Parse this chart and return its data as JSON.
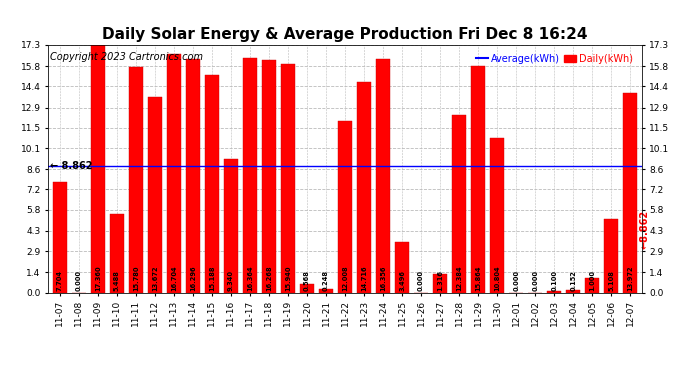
{
  "title": "Daily Solar Energy & Average Production Fri Dec 8 16:24",
  "copyright": "Copyright 2023 Cartronics.com",
  "legend_avg": "Average(kWh)",
  "legend_daily": "Daily(kWh)",
  "average": 8.862,
  "categories": [
    "11-07",
    "11-08",
    "11-09",
    "11-10",
    "11-11",
    "11-12",
    "11-13",
    "11-14",
    "11-15",
    "11-16",
    "11-17",
    "11-18",
    "11-19",
    "11-20",
    "11-21",
    "11-22",
    "11-23",
    "11-24",
    "11-25",
    "11-26",
    "11-27",
    "11-28",
    "11-29",
    "11-30",
    "12-01",
    "12-02",
    "12-03",
    "12-04",
    "12-05",
    "12-06",
    "12-07"
  ],
  "values": [
    7.704,
    0.0,
    17.36,
    5.488,
    15.78,
    13.672,
    16.704,
    16.296,
    15.188,
    9.34,
    16.364,
    16.268,
    15.94,
    0.568,
    0.248,
    12.008,
    14.716,
    16.356,
    3.496,
    0.0,
    1.316,
    12.384,
    15.864,
    10.804,
    0.0,
    0.0,
    0.1,
    0.152,
    1.0,
    5.108,
    13.972
  ],
  "bar_color": "#ff0000",
  "bar_edge_color": "#cc0000",
  "avg_line_color": "#0000ff",
  "avg_label_color": "#ff0000",
  "title_color": "#000000",
  "copyright_color": "#000000",
  "background_color": "#ffffff",
  "grid_color": "#bbbbbb",
  "yticks": [
    0.0,
    1.4,
    2.9,
    4.3,
    5.8,
    7.2,
    8.6,
    10.1,
    11.5,
    12.9,
    14.4,
    15.8,
    17.3
  ],
  "ylim": [
    0,
    17.3
  ],
  "title_fontsize": 11,
  "copyright_fontsize": 7,
  "tick_fontsize": 6.5,
  "label_fontsize": 4.8,
  "avg_fontsize": 7
}
